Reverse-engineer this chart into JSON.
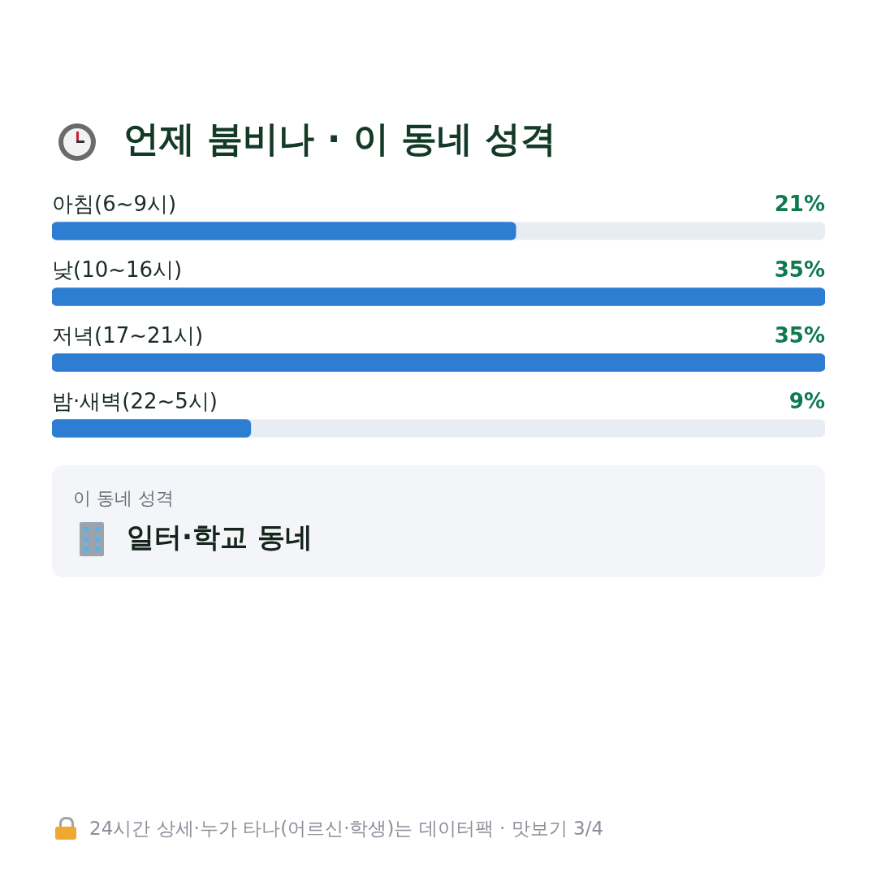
{
  "chart_data": {
    "type": "bar",
    "orientation": "horizontal",
    "title": "언제 붐비나 · 이 동네 성격",
    "categories": [
      "아침(6~9시)",
      "낮(10~16시)",
      "저녁(17~21시)",
      "밤·새벽(22~5시)"
    ],
    "values": [
      21,
      35,
      35,
      9
    ],
    "value_labels": [
      "21%",
      "35%",
      "35%",
      "9%"
    ],
    "color": "#2d7dd2",
    "xlim": [
      0,
      35
    ],
    "legend": false,
    "annotations": [
      "이 동네 성격",
      "일터·학교 동네",
      "24시간 상세·누가 타나(어르신·학생)는 데이터팩 · 맛보기 3/4"
    ]
  }
}
